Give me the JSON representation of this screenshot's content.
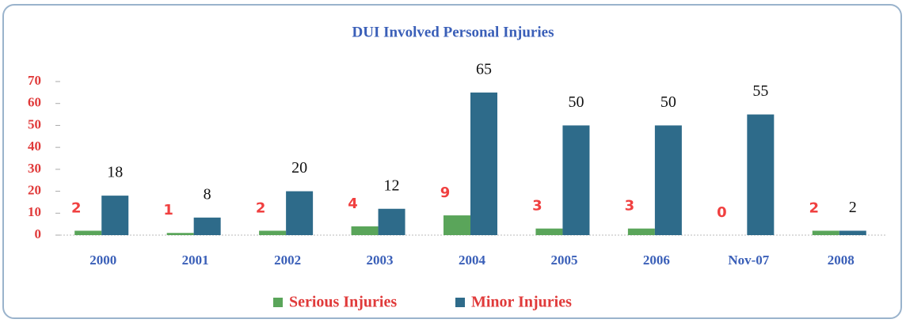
{
  "chart_data": {
    "type": "bar",
    "title": "DUI Involved Personal Injuries",
    "categories": [
      "2000",
      "2001",
      "2002",
      "2003",
      "2004",
      "2005",
      "2006",
      "Nov-07",
      "2008"
    ],
    "series": [
      {
        "name": "Serious Injuries",
        "color": "#5aa55a",
        "values": [
          2,
          1,
          2,
          4,
          9,
          3,
          3,
          0,
          2
        ]
      },
      {
        "name": "Minor Injuries",
        "color": "#2e6b8a",
        "values": [
          18,
          8,
          20,
          12,
          65,
          50,
          50,
          55,
          2
        ]
      }
    ],
    "ylim": [
      0,
      70
    ],
    "yticks": [
      0,
      10,
      20,
      30,
      40,
      50,
      60,
      70
    ],
    "legend": "bottom"
  }
}
